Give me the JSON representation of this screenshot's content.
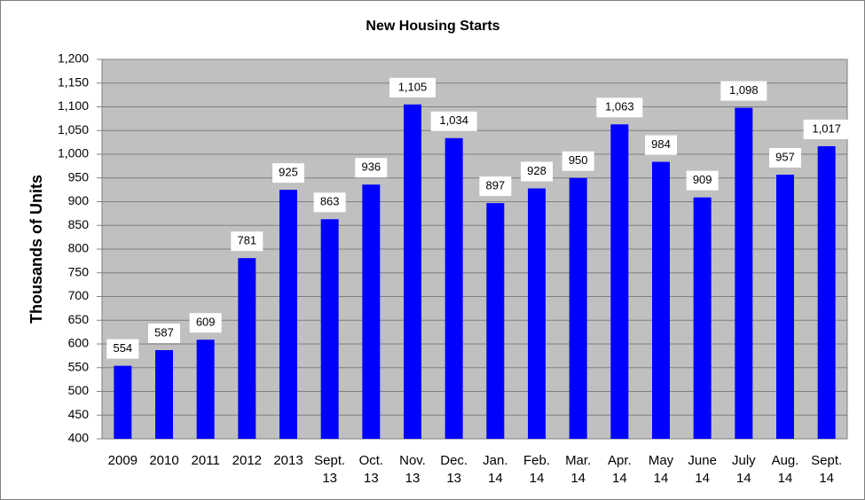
{
  "chart_data": {
    "type": "bar",
    "title": "New Housing Starts",
    "y_label": "Thousands of Units",
    "categories": [
      [
        "2009"
      ],
      [
        "2010"
      ],
      [
        "2011"
      ],
      [
        "2012"
      ],
      [
        "2013"
      ],
      [
        "Sept.",
        "13"
      ],
      [
        "Oct.",
        "13"
      ],
      [
        "Nov.",
        "13"
      ],
      [
        "Dec.",
        "13"
      ],
      [
        "Jan.",
        "14"
      ],
      [
        "Feb.",
        "14"
      ],
      [
        "Mar.",
        "14"
      ],
      [
        "Apr.",
        "14"
      ],
      [
        "May",
        "14"
      ],
      [
        "June",
        "14"
      ],
      [
        "July",
        "14"
      ],
      [
        "Aug.",
        "14"
      ],
      [
        "Sept.",
        "14"
      ]
    ],
    "values": [
      554,
      587,
      609,
      781,
      925,
      863,
      936,
      1105,
      1034,
      897,
      928,
      950,
      1063,
      984,
      909,
      1098,
      957,
      1017
    ],
    "value_labels": [
      "554",
      "587",
      "609",
      "781",
      "925",
      "863",
      "936",
      "1,105",
      "1,034",
      "897",
      "928",
      "950",
      "1,063",
      "984",
      "909",
      "1,098",
      "957",
      "1,017"
    ],
    "color": "#0000ff",
    "ylim": [
      400,
      1200
    ],
    "yticks": [
      400,
      450,
      500,
      550,
      600,
      650,
      700,
      750,
      800,
      850,
      900,
      950,
      {
        "value": 1000,
        "label": "1,000"
      },
      {
        "value": 1050,
        "label": "1,050"
      },
      {
        "value": 1100,
        "label": "1,100"
      },
      {
        "value": 1150,
        "label": "1,150"
      },
      {
        "value": 1200,
        "label": "1,200"
      }
    ],
    "grid": true
  }
}
